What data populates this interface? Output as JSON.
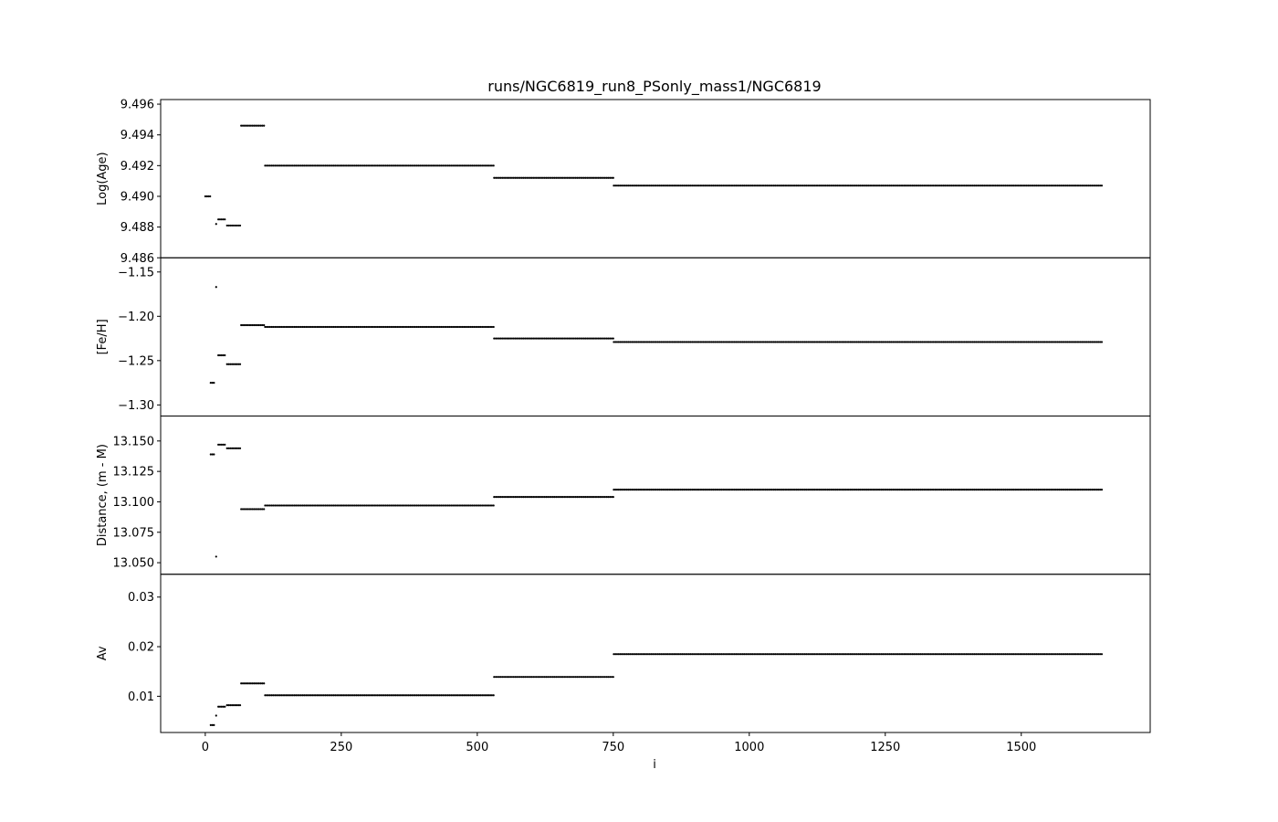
{
  "chart_data": {
    "type": "scatter",
    "title": "runs/NGC6819_run8_PSonly_mass1/NGC6819",
    "xlabel": "i",
    "xlim": [
      -82,
      1737
    ],
    "xticks": [
      0,
      250,
      500,
      750,
      1000,
      1250,
      1500
    ],
    "xtick_labels": [
      "0",
      "250",
      "500",
      "750",
      "1000",
      "1250",
      "1500"
    ],
    "marker_color": "#000000",
    "grid": false,
    "panels": [
      {
        "ylabel": "Log(Age)",
        "ylim": [
          9.486,
          9.4963
        ],
        "yticks": [
          9.486,
          9.488,
          9.49,
          9.492,
          9.494,
          9.496
        ],
        "ytick_labels": [
          "9.486",
          "9.488",
          "9.490",
          "9.492",
          "9.494",
          "9.496"
        ],
        "points": [
          {
            "x": 0,
            "y": 9.49
          },
          {
            "x": 10,
            "y": 9.49
          },
          {
            "x": 20,
            "y": 9.4882
          },
          {
            "x": 24,
            "y": 9.4885
          },
          {
            "x": 38,
            "y": 9.4885
          },
          {
            "x": 40,
            "y": 9.4881
          },
          {
            "x": 65,
            "y": 9.4881
          },
          {
            "x": 66,
            "y": 9.4946
          },
          {
            "x": 108,
            "y": 9.4946
          },
          {
            "x": 110,
            "y": 9.492
          },
          {
            "x": 530,
            "y": 9.492
          },
          {
            "x": 531,
            "y": 9.4912
          },
          {
            "x": 750,
            "y": 9.4912
          },
          {
            "x": 751,
            "y": 9.4907
          },
          {
            "x": 1650,
            "y": 9.4907
          }
        ]
      },
      {
        "ylabel": "[Fe/H]",
        "ylim": [
          -1.3125,
          -1.134
        ],
        "yticks": [
          -1.3,
          -1.25,
          -1.2,
          -1.15
        ],
        "ytick_labels": [
          "−1.30",
          "−1.25",
          "−1.20",
          "−1.15"
        ],
        "points": [
          {
            "x": 10,
            "y": -1.275
          },
          {
            "x": 18,
            "y": -1.275
          },
          {
            "x": 20,
            "y": -1.167
          },
          {
            "x": 24,
            "y": -1.244
          },
          {
            "x": 38,
            "y": -1.244
          },
          {
            "x": 40,
            "y": -1.254
          },
          {
            "x": 65,
            "y": -1.254
          },
          {
            "x": 66,
            "y": -1.21
          },
          {
            "x": 108,
            "y": -1.21
          },
          {
            "x": 110,
            "y": -1.212
          },
          {
            "x": 530,
            "y": -1.212
          },
          {
            "x": 531,
            "y": -1.225
          },
          {
            "x": 750,
            "y": -1.225
          },
          {
            "x": 751,
            "y": -1.229
          },
          {
            "x": 1650,
            "y": -1.229
          }
        ]
      },
      {
        "ylabel": "Distance, (m - M)",
        "ylim": [
          13.0405,
          13.1705
        ],
        "yticks": [
          13.05,
          13.075,
          13.1,
          13.125,
          13.15
        ],
        "ytick_labels": [
          "13.050",
          "13.075",
          "13.100",
          "13.125",
          "13.150"
        ],
        "points": [
          {
            "x": 10,
            "y": 13.139
          },
          {
            "x": 18,
            "y": 13.139
          },
          {
            "x": 20,
            "y": 13.055
          },
          {
            "x": 24,
            "y": 13.147
          },
          {
            "x": 38,
            "y": 13.147
          },
          {
            "x": 40,
            "y": 13.144
          },
          {
            "x": 65,
            "y": 13.144
          },
          {
            "x": 66,
            "y": 13.094
          },
          {
            "x": 108,
            "y": 13.094
          },
          {
            "x": 110,
            "y": 13.097
          },
          {
            "x": 530,
            "y": 13.097
          },
          {
            "x": 531,
            "y": 13.104
          },
          {
            "x": 750,
            "y": 13.104
          },
          {
            "x": 751,
            "y": 13.11
          },
          {
            "x": 1650,
            "y": 13.11
          }
        ]
      },
      {
        "ylabel": "Av",
        "ylim": [
          0.0027,
          0.0346
        ],
        "yticks": [
          0.01,
          0.02,
          0.03
        ],
        "ytick_labels": [
          "0.01",
          "0.02",
          "0.03"
        ],
        "points": [
          {
            "x": 10,
            "y": 0.0042
          },
          {
            "x": 18,
            "y": 0.0042
          },
          {
            "x": 20,
            "y": 0.0061
          },
          {
            "x": 24,
            "y": 0.0079
          },
          {
            "x": 38,
            "y": 0.0079
          },
          {
            "x": 40,
            "y": 0.0082
          },
          {
            "x": 65,
            "y": 0.0082
          },
          {
            "x": 66,
            "y": 0.0126
          },
          {
            "x": 108,
            "y": 0.0126
          },
          {
            "x": 110,
            "y": 0.0102
          },
          {
            "x": 530,
            "y": 0.0102
          },
          {
            "x": 531,
            "y": 0.0139
          },
          {
            "x": 750,
            "y": 0.0139
          },
          {
            "x": 751,
            "y": 0.0185
          },
          {
            "x": 1650,
            "y": 0.0185
          }
        ]
      }
    ]
  }
}
